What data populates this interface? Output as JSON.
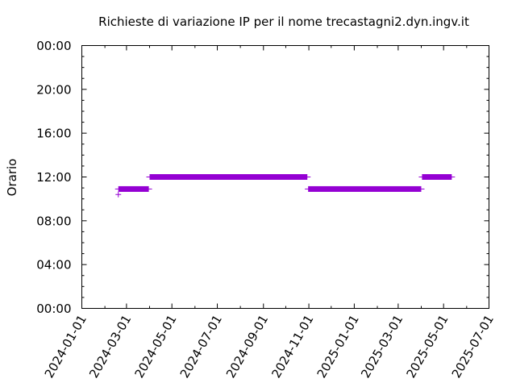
{
  "chart_data": {
    "type": "scatter",
    "title": "Richieste di variazione IP per il nome trecastagni2.dyn.ingv.it",
    "xlabel": "",
    "ylabel": "Orario",
    "x_tick_labels": [
      "2024-01-01",
      "2024-03-01",
      "2024-05-01",
      "2024-07-01",
      "2024-09-01",
      "2024-11-01",
      "2025-01-01",
      "2025-03-01",
      "2025-05-01",
      "2025-07-01"
    ],
    "y_tick_labels": [
      "00:00",
      "04:00",
      "08:00",
      "12:00",
      "16:00",
      "20:00",
      "00:00"
    ],
    "xlim": [
      "2024-01-01",
      "2025-07-01"
    ],
    "ylim": [
      0,
      24
    ],
    "grid": false,
    "series": [
      {
        "color": "#9400d3",
        "marker": "plus",
        "segments": [
          {
            "start": "2024-02-19",
            "end": "2024-03-31",
            "hour": 10.9
          },
          {
            "start": "2024-04-01",
            "end": "2024-10-30",
            "hour": 12.0
          },
          {
            "start": "2024-10-31",
            "end": "2025-04-01",
            "hour": 10.9
          },
          {
            "start": "2025-04-02",
            "end": "2025-05-12",
            "hour": 12.0
          }
        ],
        "points": [
          {
            "x": "2024-02-19",
            "y": 10.4
          }
        ]
      }
    ]
  }
}
